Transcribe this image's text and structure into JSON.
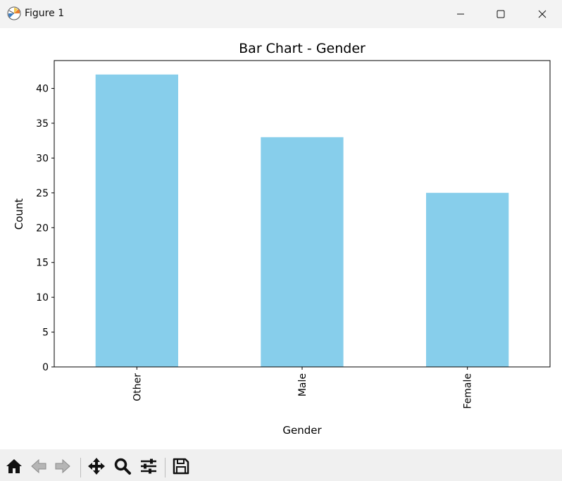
{
  "window": {
    "title": "Figure 1",
    "icons": {
      "app": "matplotlib-figure-icon",
      "minimize": "minimize-icon",
      "maximize": "maximize-icon",
      "close": "close-icon"
    }
  },
  "toolbar": {
    "tools": [
      {
        "icon": "home-icon"
      },
      {
        "icon": "back-arrow-icon"
      },
      {
        "icon": "forward-arrow-icon"
      },
      {
        "icon": "pan-move-icon"
      },
      {
        "icon": "zoom-magnifier-icon"
      },
      {
        "icon": "configure-subplots-icon"
      },
      {
        "icon": "save-disk-icon"
      }
    ]
  },
  "chart_data": {
    "type": "bar",
    "title": "Bar Chart - Gender",
    "xlabel": "Gender",
    "ylabel": "Count",
    "categories": [
      "Other",
      "Male",
      "Female"
    ],
    "values": [
      42,
      33,
      25
    ],
    "ylim": [
      0,
      44
    ],
    "yticks": [
      "0",
      "5",
      "10",
      "15",
      "20",
      "25",
      "30",
      "35",
      "40"
    ],
    "bar_color": "#87ceeb",
    "grid": false,
    "xtick_rotation": 90
  }
}
